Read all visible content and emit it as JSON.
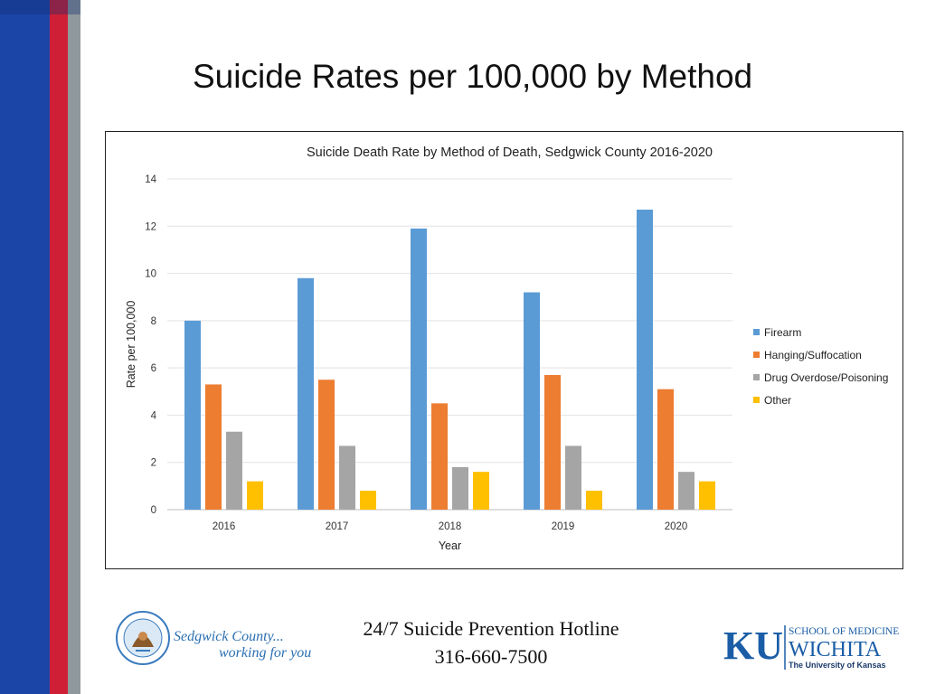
{
  "slide": {
    "title": "Suicide Rates per 100,000 by Method",
    "colors": {
      "stripe_blue": "#1c45a8",
      "stripe_red": "#cf1f36",
      "stripe_gray": "#8f989d"
    }
  },
  "chart_data": {
    "type": "bar",
    "title": "Suicide Death Rate by Method of Death, Sedgwick County 2016-2020",
    "xlabel": "Year",
    "ylabel": "Rate per 100,000",
    "categories": [
      "2016",
      "2017",
      "2018",
      "2019",
      "2020"
    ],
    "ylim": [
      0,
      14
    ],
    "yticks": [
      0,
      2,
      4,
      6,
      8,
      10,
      12,
      14
    ],
    "grid": true,
    "legend_position": "right",
    "series": [
      {
        "name": "Firearm",
        "color": "#5b9bd5",
        "values": [
          8.0,
          9.8,
          11.9,
          9.2,
          12.7
        ]
      },
      {
        "name": "Hanging/Suffocation",
        "color": "#ed7d31",
        "values": [
          5.3,
          5.5,
          4.5,
          5.7,
          5.1
        ]
      },
      {
        "name": "Drug Overdose/Poisoning",
        "color": "#a5a5a5",
        "values": [
          3.3,
          2.7,
          1.8,
          2.7,
          1.6
        ]
      },
      {
        "name": "Other",
        "color": "#ffc000",
        "values": [
          1.2,
          0.8,
          1.6,
          0.8,
          1.2
        ]
      }
    ]
  },
  "footer": {
    "hotline_line1": "24/7 Suicide Prevention Hotline",
    "hotline_line2": "316-660-7500",
    "sedgwick_line1": "Sedgwick County...",
    "sedgwick_line2": "working for you",
    "sedgwick_seal_text": "SEDGWICK COUNTY KANSAS",
    "ku_mark": "KU",
    "ku_school": "SCHOOL OF MEDICINE",
    "ku_city": "WICHITA",
    "ku_university": "The University of Kansas"
  }
}
